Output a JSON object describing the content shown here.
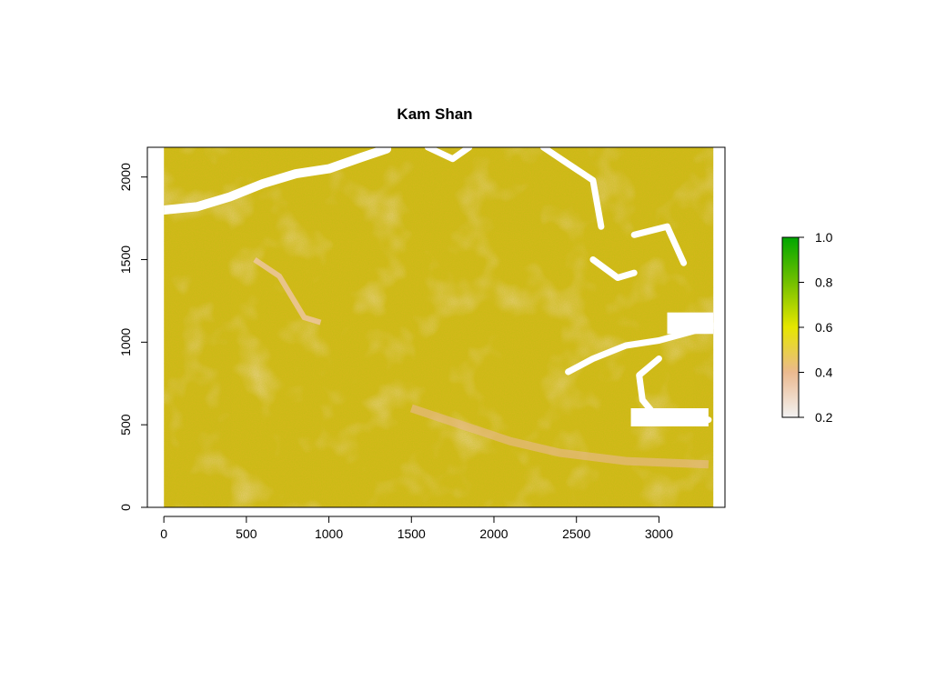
{
  "chart_data": {
    "type": "heatmap",
    "title": "Kam Shan",
    "xlabel": "",
    "ylabel": "",
    "xlim": [
      -100,
      3400
    ],
    "ylim": [
      0,
      2180
    ],
    "raster_extent": {
      "x": [
        0,
        3330
      ],
      "y": [
        0,
        2180
      ]
    },
    "x_ticks": [
      0,
      500,
      1000,
      1500,
      2000,
      2500,
      3000
    ],
    "x_tick_labels": [
      "0",
      "500",
      "1000",
      "1500",
      "2000",
      "2500",
      "3000"
    ],
    "y_ticks": [
      0,
      500,
      1000,
      1500,
      2000
    ],
    "y_tick_labels": [
      "0",
      "500",
      "1000",
      "1500",
      "2000"
    ],
    "legend": {
      "position": "right",
      "range": [
        0.2,
        1.0
      ],
      "ticks": [
        0.2,
        0.4,
        0.6,
        0.8,
        1.0
      ],
      "tick_labels": [
        "0.2",
        "0.4",
        "0.6",
        "0.8",
        "1.0"
      ],
      "colors": [
        "#f2f2f2",
        "#ebb98f",
        "#e6e600",
        "#73c000",
        "#00a600"
      ]
    },
    "dominant_values": [
      0.5,
      0.55,
      0.6
    ],
    "no_data_color": "#ffffff"
  }
}
